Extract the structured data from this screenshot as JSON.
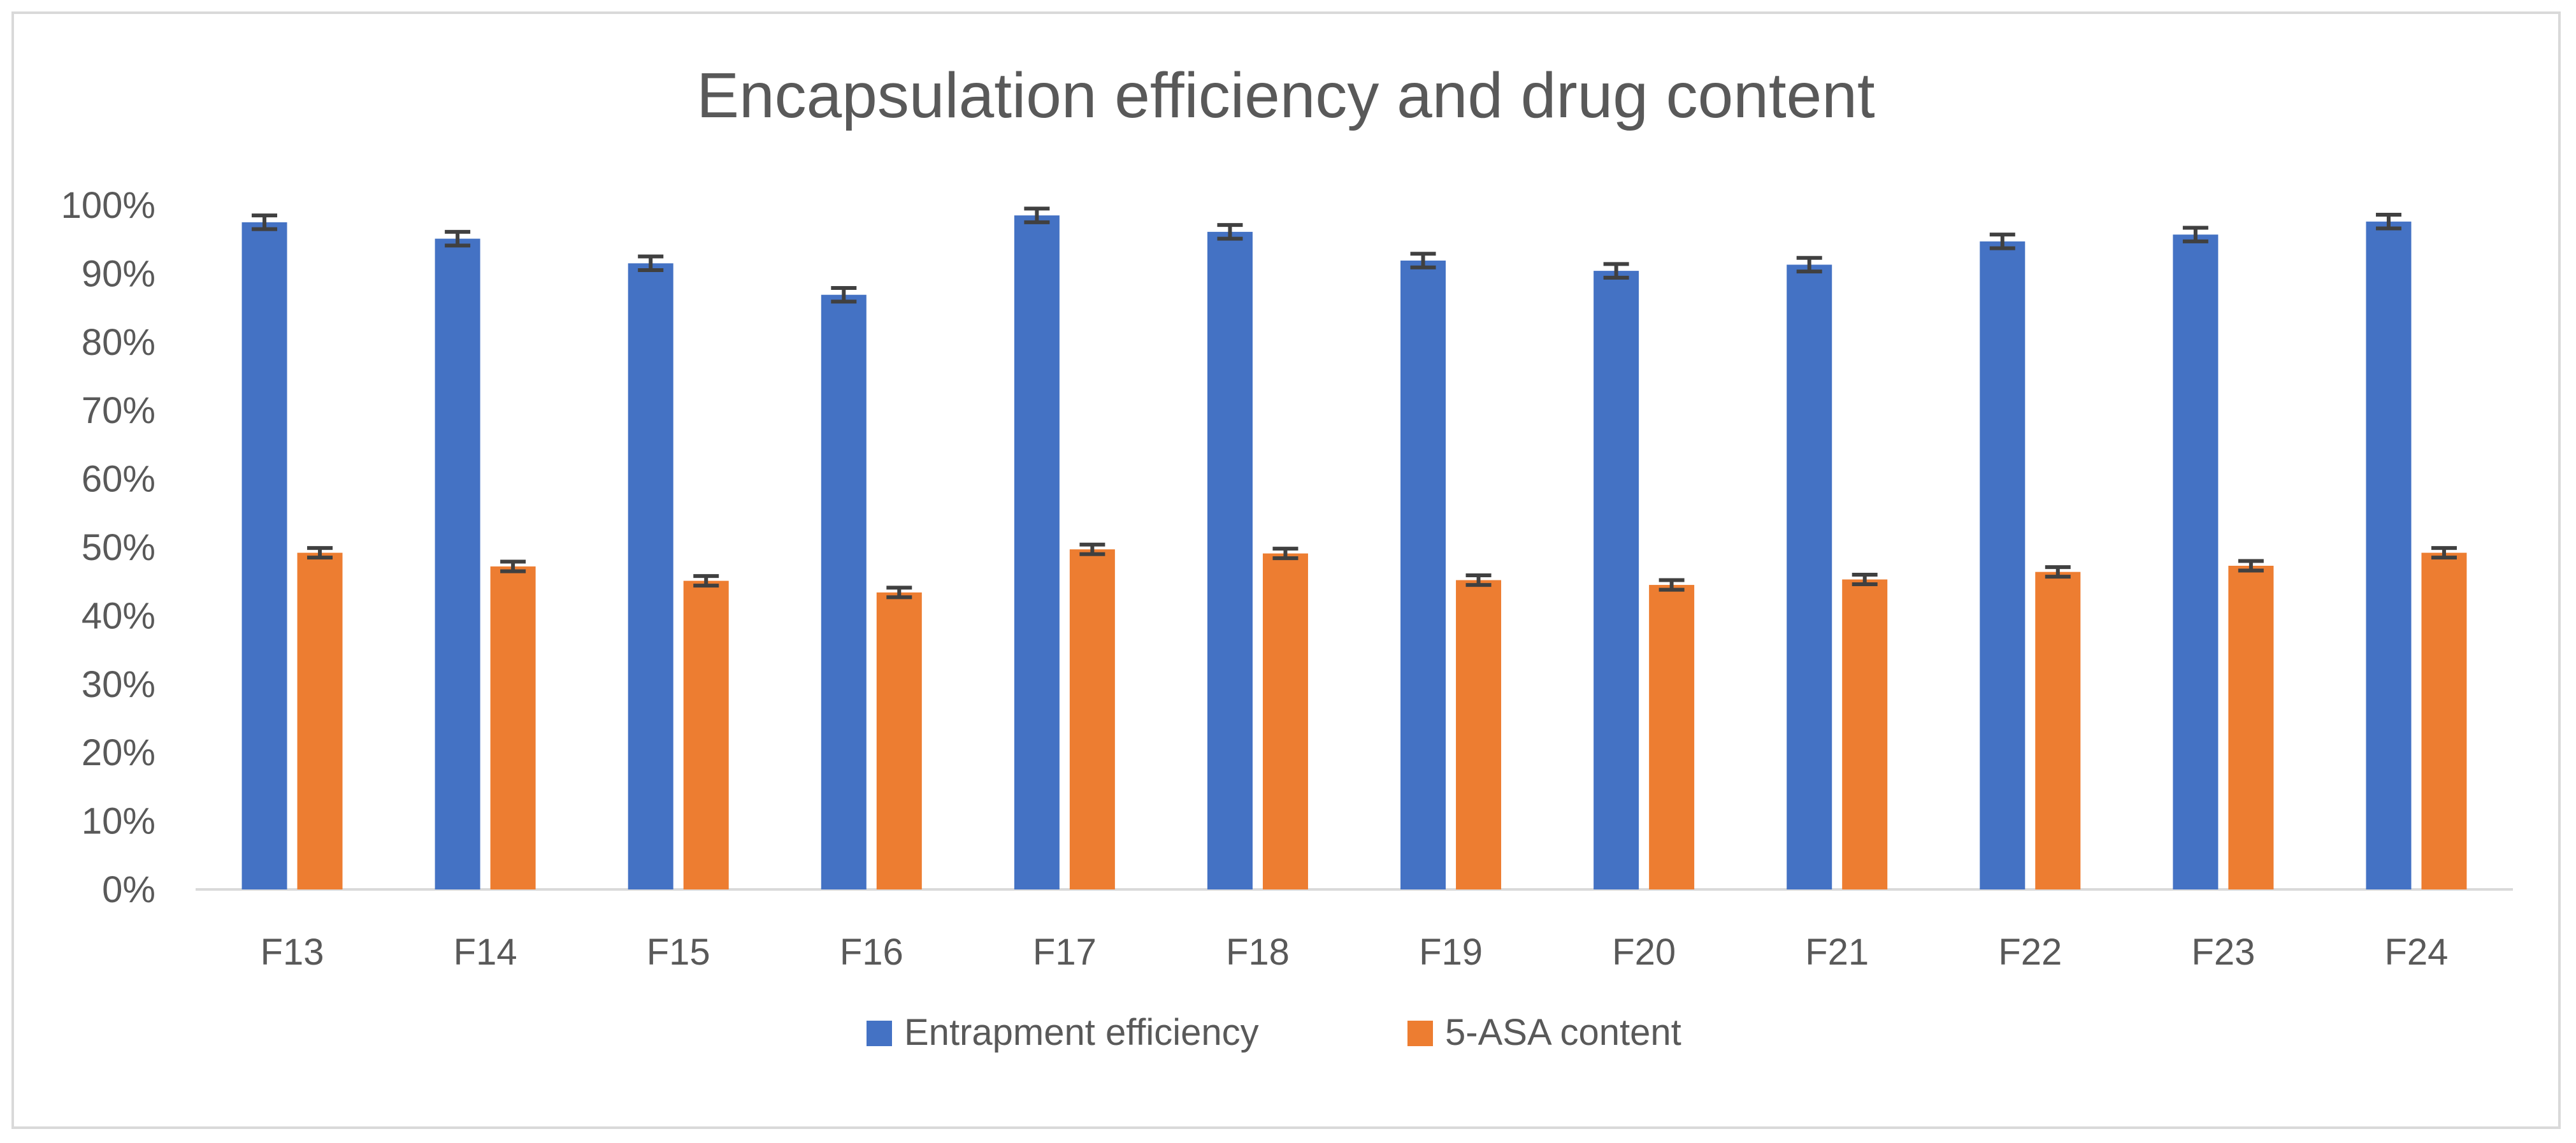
{
  "chart_data": {
    "type": "bar",
    "title": "Encapsulation efficiency and drug content",
    "xlabel": "",
    "ylabel": "",
    "categories": [
      "F13",
      "F14",
      "F15",
      "F16",
      "F17",
      "F18",
      "F19",
      "F20",
      "F21",
      "F22",
      "F23",
      "F24"
    ],
    "series": [
      {
        "name": "Entrapment efficiency",
        "color": "#4472c4",
        "values": [
          97.5,
          95.1,
          91.5,
          86.9,
          98.5,
          96.1,
          91.9,
          90.4,
          91.3,
          94.7,
          95.7,
          97.6
        ],
        "errors": [
          1.0,
          1.0,
          1.0,
          1.0,
          1.0,
          1.0,
          1.0,
          1.0,
          1.0,
          1.0,
          1.0,
          1.0
        ]
      },
      {
        "name": "5-ASA content",
        "color": "#ed7d31",
        "values": [
          49.2,
          47.2,
          45.1,
          43.4,
          49.7,
          49.1,
          45.2,
          44.5,
          45.3,
          46.4,
          47.3,
          49.2
        ],
        "errors": [
          0.7,
          0.7,
          0.7,
          0.7,
          0.7,
          0.7,
          0.7,
          0.7,
          0.7,
          0.7,
          0.7,
          0.7
        ]
      }
    ],
    "ylim": [
      0,
      100
    ],
    "yticks": [
      "0%",
      "10%",
      "20%",
      "30%",
      "40%",
      "50%",
      "60%",
      "70%",
      "80%",
      "90%",
      "100%"
    ],
    "grid": false,
    "legend": "bottom-center",
    "error_bar_color": "#404040"
  }
}
